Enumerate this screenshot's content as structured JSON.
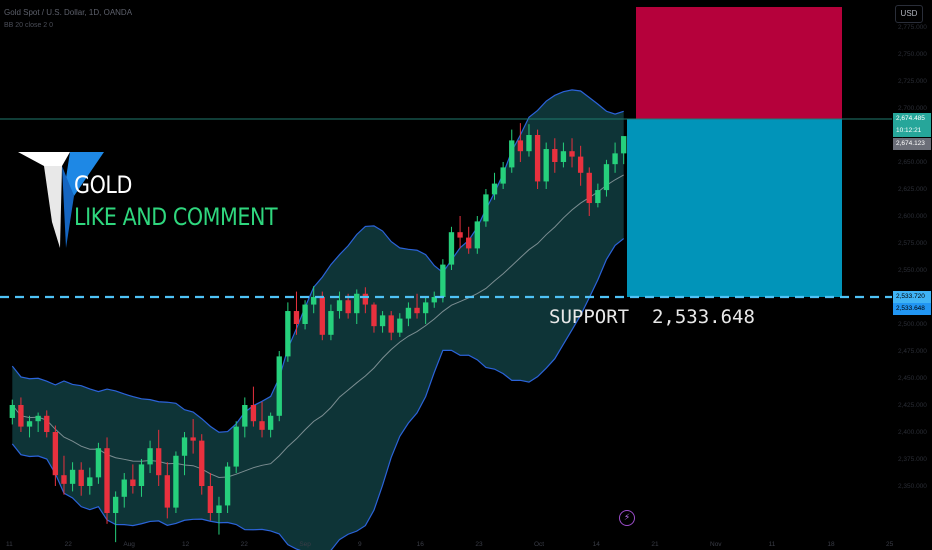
{
  "header": {
    "symbol": "Gold Spot / U.S. Dollar, 1D, OANDA",
    "sub": "BB 20 close 2 0",
    "currency": "USD"
  },
  "overlay": {
    "title": "GOLD",
    "subtitle": "LIKE AND COMMENT",
    "support_text": "SUPPORT  2,533.648"
  },
  "price_tags": {
    "current": "2,674.485",
    "countdown": "10:12:21",
    "prev": "2,674.123",
    "support_a": "2,533.720",
    "support_b": "2,533.648"
  },
  "colors": {
    "up": "#26d07c",
    "down": "#e8313e",
    "band_fill": "#0f3a3d",
    "band_line": "#2b63d9",
    "basis": "#aab3b8",
    "target": "#b5013b",
    "stop": "#0194b9",
    "support_line": "#4fc3f7"
  },
  "chart_data": {
    "type": "candlestick",
    "ylim": [
      2300,
      2800
    ],
    "support": 2533.648,
    "entry": 2674.485,
    "target": 2790,
    "x_ticks": [
      "11",
      "22",
      "Aug",
      "12",
      "22",
      "Sep",
      "9",
      "16",
      "23",
      "Oct",
      "14",
      "21",
      "Nov",
      "11",
      "18",
      "25"
    ],
    "candles": [
      [
        2413,
        2430,
        2407,
        2425
      ],
      [
        2425,
        2432,
        2400,
        2405
      ],
      [
        2405,
        2415,
        2395,
        2410
      ],
      [
        2410,
        2418,
        2400,
        2415
      ],
      [
        2415,
        2420,
        2395,
        2400
      ],
      [
        2400,
        2406,
        2350,
        2360
      ],
      [
        2360,
        2378,
        2342,
        2352
      ],
      [
        2352,
        2372,
        2345,
        2365
      ],
      [
        2365,
        2372,
        2341,
        2350
      ],
      [
        2350,
        2367,
        2342,
        2358
      ],
      [
        2358,
        2390,
        2352,
        2385
      ],
      [
        2385,
        2395,
        2315,
        2325
      ],
      [
        2325,
        2345,
        2298,
        2340
      ],
      [
        2340,
        2362,
        2330,
        2356
      ],
      [
        2356,
        2370,
        2343,
        2350
      ],
      [
        2350,
        2375,
        2340,
        2370
      ],
      [
        2370,
        2392,
        2362,
        2385
      ],
      [
        2385,
        2402,
        2350,
        2360
      ],
      [
        2360,
        2372,
        2320,
        2330
      ],
      [
        2330,
        2382,
        2325,
        2378
      ],
      [
        2378,
        2400,
        2360,
        2395
      ],
      [
        2395,
        2412,
        2380,
        2392
      ],
      [
        2392,
        2398,
        2342,
        2350
      ],
      [
        2350,
        2362,
        2318,
        2325
      ],
      [
        2325,
        2340,
        2305,
        2332
      ],
      [
        2332,
        2372,
        2325,
        2368
      ],
      [
        2368,
        2410,
        2362,
        2405
      ],
      [
        2405,
        2432,
        2395,
        2425
      ],
      [
        2425,
        2442,
        2405,
        2410
      ],
      [
        2410,
        2428,
        2395,
        2402
      ],
      [
        2402,
        2418,
        2395,
        2415
      ],
      [
        2415,
        2475,
        2410,
        2470
      ],
      [
        2470,
        2520,
        2465,
        2512
      ],
      [
        2512,
        2530,
        2490,
        2500
      ],
      [
        2500,
        2522,
        2495,
        2518
      ],
      [
        2518,
        2535,
        2510,
        2525
      ],
      [
        2525,
        2530,
        2485,
        2490
      ],
      [
        2490,
        2518,
        2485,
        2512
      ],
      [
        2512,
        2530,
        2505,
        2522
      ],
      [
        2522,
        2528,
        2505,
        2510
      ],
      [
        2510,
        2532,
        2500,
        2528
      ],
      [
        2528,
        2534,
        2510,
        2518
      ],
      [
        2518,
        2520,
        2492,
        2498
      ],
      [
        2498,
        2512,
        2492,
        2508
      ],
      [
        2508,
        2512,
        2485,
        2492
      ],
      [
        2492,
        2510,
        2488,
        2505
      ],
      [
        2505,
        2520,
        2498,
        2515
      ],
      [
        2515,
        2528,
        2505,
        2510
      ],
      [
        2510,
        2525,
        2500,
        2520
      ],
      [
        2520,
        2530,
        2515,
        2525
      ],
      [
        2525,
        2560,
        2520,
        2555
      ],
      [
        2555,
        2590,
        2550,
        2585
      ],
      [
        2585,
        2600,
        2570,
        2580
      ],
      [
        2580,
        2590,
        2565,
        2570
      ],
      [
        2570,
        2600,
        2565,
        2595
      ],
      [
        2595,
        2625,
        2590,
        2620
      ],
      [
        2620,
        2640,
        2615,
        2630
      ],
      [
        2630,
        2650,
        2625,
        2645
      ],
      [
        2645,
        2680,
        2640,
        2670
      ],
      [
        2670,
        2686,
        2650,
        2660
      ],
      [
        2660,
        2685,
        2655,
        2675
      ],
      [
        2675,
        2680,
        2625,
        2632
      ],
      [
        2632,
        2668,
        2625,
        2662
      ],
      [
        2662,
        2672,
        2640,
        2650
      ],
      [
        2650,
        2668,
        2645,
        2660
      ],
      [
        2660,
        2672,
        2645,
        2655
      ],
      [
        2655,
        2665,
        2628,
        2640
      ],
      [
        2640,
        2645,
        2600,
        2612
      ],
      [
        2612,
        2630,
        2608,
        2624
      ],
      [
        2624,
        2652,
        2618,
        2648
      ],
      [
        2648,
        2668,
        2640,
        2658
      ],
      [
        2658,
        2670,
        2648,
        2674
      ]
    ]
  }
}
